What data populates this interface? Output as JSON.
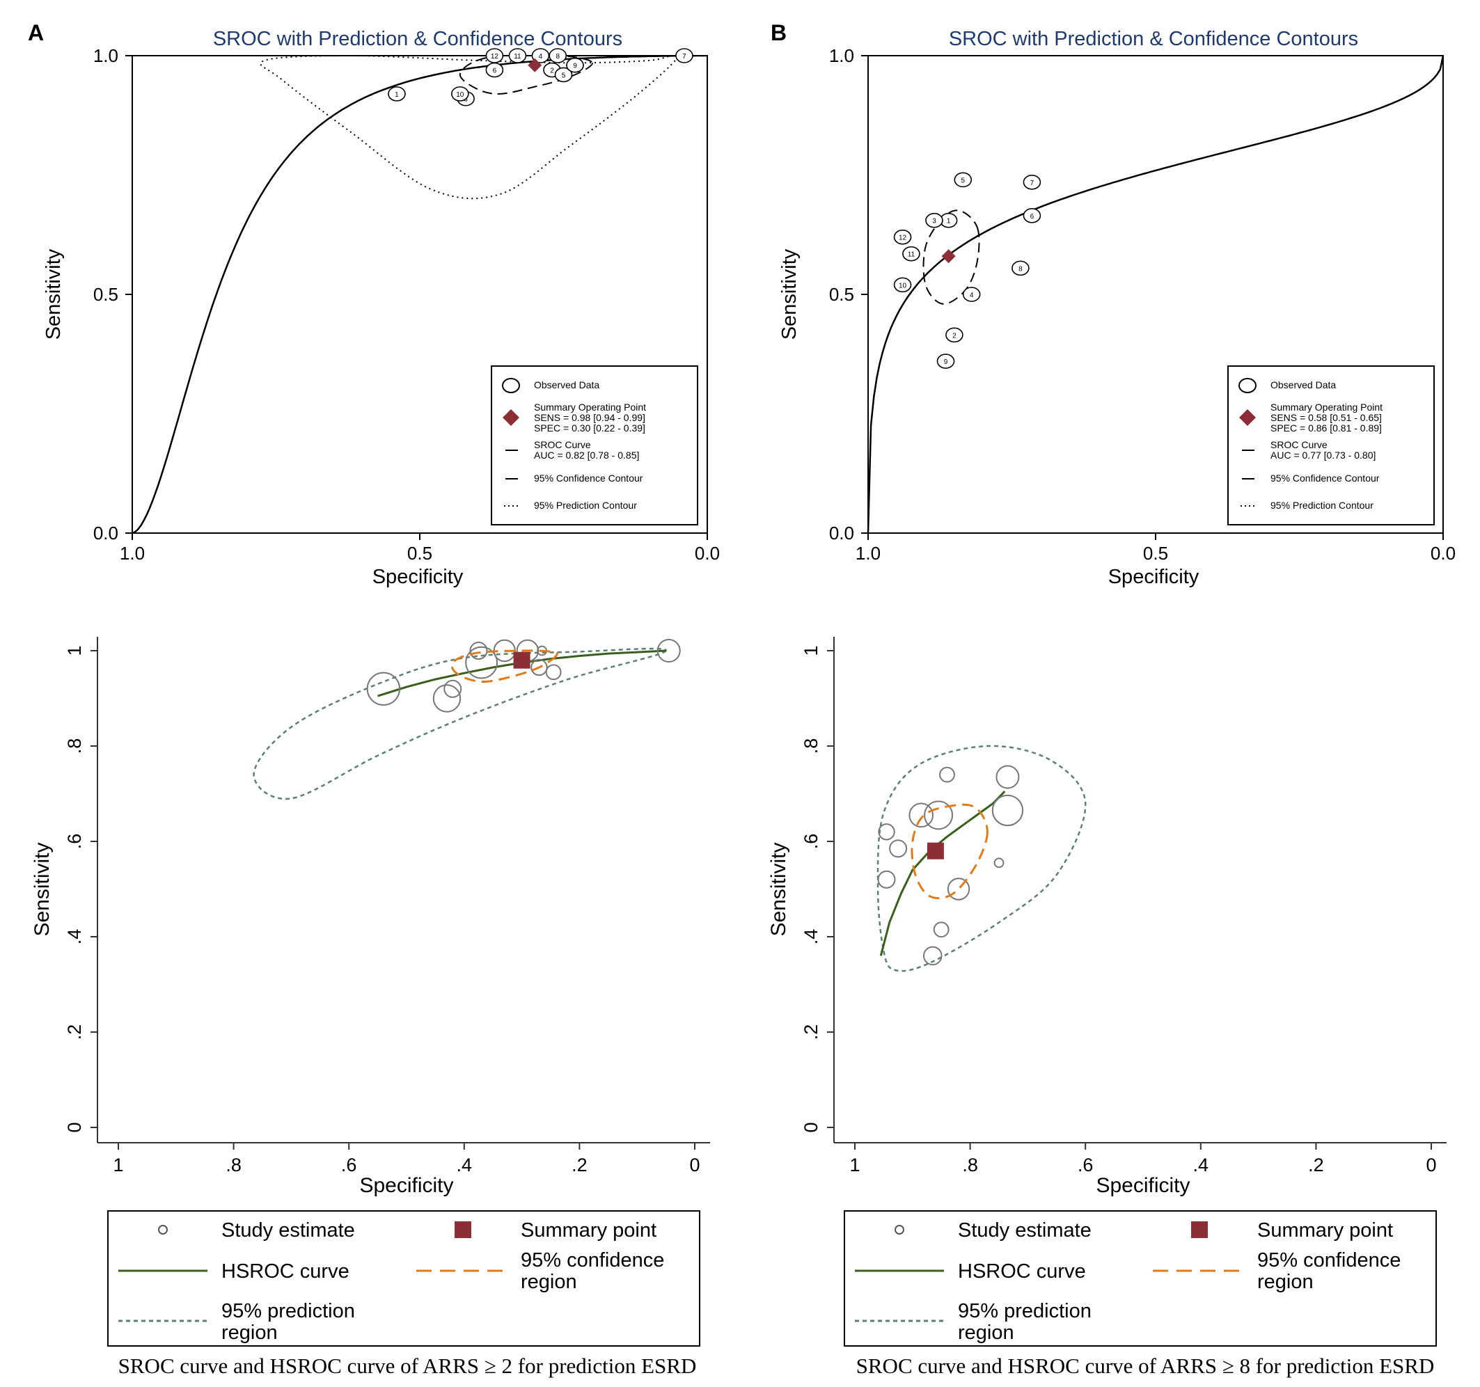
{
  "figure": {
    "panels": [
      {
        "letter": "A",
        "sroc": {
          "title": "SROC with Prediction & Confidence Contours",
          "xlabel": "Specificity",
          "ylabel": "Sensitivity",
          "xticks": [
            "1.0",
            "0.5",
            "0.0"
          ],
          "yticks": [
            "0.0",
            "0.5",
            "1.0"
          ],
          "legend": {
            "observed": "Observed Data",
            "summary": [
              "Summary Operating Point",
              "SENS = 0.98 [0.94 - 0.99]",
              "SPEC = 0.30 [0.22 - 0.39]"
            ],
            "curve": [
              "SROC Curve",
              "AUC = 0.82 [0.78 - 0.85]"
            ],
            "confidence": "95% Confidence Contour",
            "prediction": "95% Prediction Contour"
          }
        },
        "hsroc": {
          "xlabel": "Specificity",
          "ylabel": "Sensitivity",
          "xticks": [
            "1",
            ".8",
            ".6",
            ".4",
            ".2",
            "0"
          ],
          "yticks": [
            "0",
            ".2",
            ".4",
            ".6",
            ".8",
            "1"
          ],
          "legend": {
            "study": "Study estimate",
            "summary": "Summary point",
            "curve": "HSROC curve",
            "confidence": [
              "95% confidence",
              "region"
            ],
            "prediction": [
              "95% prediction",
              "region"
            ]
          }
        },
        "caption": "SROC curve and HSROC curve of ARRS ≥ 2 for prediction ESRD"
      },
      {
        "letter": "B",
        "sroc": {
          "title": "SROC with Prediction & Confidence Contours",
          "xlabel": "Specificity",
          "ylabel": "Sensitivity",
          "xticks": [
            "1.0",
            "0.5",
            "0.0"
          ],
          "yticks": [
            "0.0",
            "0.5",
            "1.0"
          ],
          "legend": {
            "observed": "Observed Data",
            "summary": [
              "Summary Operating Point",
              "SENS = 0.58 [0.51 - 0.65]",
              "SPEC = 0.86 [0.81 - 0.89]"
            ],
            "curve": [
              "SROC Curve",
              "AUC = 0.77 [0.73 - 0.80]"
            ],
            "confidence": "95% Confidence Contour",
            "prediction": "95% Prediction Contour"
          }
        },
        "hsroc": {
          "xlabel": "Specificity",
          "ylabel": "Sensitivity",
          "xticks": [
            "1",
            ".8",
            ".6",
            ".4",
            ".2",
            "0"
          ],
          "yticks": [
            "0",
            ".2",
            ".4",
            ".6",
            ".8",
            "1"
          ],
          "legend": {
            "study": "Study estimate",
            "summary": "Summary point",
            "curve": "HSROC curve",
            "confidence": [
              "95% confidence",
              "region"
            ],
            "prediction": [
              "95% prediction",
              "region"
            ]
          }
        },
        "caption": "SROC curve and HSROC curve of ARRS ≥ 8 for prediction ESRD"
      }
    ]
  },
  "colors": {
    "summary": "#8b2e36",
    "hsroc_curve": "#3a5f1c",
    "confidence_region": "#e07b1a",
    "prediction_region": "#5c7f73",
    "study_circle": "#777777",
    "title": "#1f3a6e",
    "axis": "#000000"
  },
  "chart_data": [
    {
      "type": "scatter",
      "title": "SROC with Prediction & Confidence Contours",
      "panel": "A",
      "xlabel": "Specificity",
      "ylabel": "Sensitivity",
      "xlim": [
        1.0,
        0.0
      ],
      "ylim": [
        0.0,
        1.0
      ],
      "studies": [
        {
          "id": "1",
          "spec": 0.54,
          "sens": 0.92
        },
        {
          "id": "2",
          "spec": 0.27,
          "sens": 0.97
        },
        {
          "id": "3",
          "spec": 0.42,
          "sens": 0.91
        },
        {
          "id": "4",
          "spec": 0.29,
          "sens": 1.0
        },
        {
          "id": "5",
          "spec": 0.25,
          "sens": 0.96
        },
        {
          "id": "6",
          "spec": 0.37,
          "sens": 0.97
        },
        {
          "id": "7",
          "spec": 0.04,
          "sens": 1.0
        },
        {
          "id": "8",
          "spec": 0.26,
          "sens": 1.0
        },
        {
          "id": "9",
          "spec": 0.23,
          "sens": 0.98
        },
        {
          "id": "10",
          "spec": 0.43,
          "sens": 0.92
        },
        {
          "id": "11",
          "spec": 0.33,
          "sens": 1.0
        },
        {
          "id": "12",
          "spec": 0.37,
          "sens": 1.0
        }
      ],
      "summary": {
        "spec": 0.3,
        "sens": 0.98,
        "sens_ci": [
          0.94,
          0.99
        ],
        "spec_ci": [
          0.22,
          0.39
        ]
      },
      "sroc_curve": {
        "auc": 0.82,
        "auc_ci": [
          0.78,
          0.85
        ]
      },
      "prediction_contour": [
        [
          0.23,
          0.985
        ],
        [
          0.1,
          0.99
        ],
        [
          0.05,
          1.0
        ],
        [
          0.12,
          0.92
        ],
        [
          0.24,
          0.81
        ],
        [
          0.36,
          0.71
        ],
        [
          0.48,
          0.72
        ],
        [
          0.62,
          0.84
        ],
        [
          0.74,
          0.95
        ],
        [
          0.77,
          0.99
        ],
        [
          0.62,
          1.0
        ],
        [
          0.4,
          0.99
        ]
      ],
      "confidence_contour": [
        [
          0.2,
          0.985
        ],
        [
          0.24,
          0.955
        ],
        [
          0.3,
          0.935
        ],
        [
          0.36,
          0.92
        ],
        [
          0.4,
          0.93
        ],
        [
          0.43,
          0.96
        ],
        [
          0.4,
          0.99
        ],
        [
          0.33,
          1.005
        ],
        [
          0.25,
          1.0
        ]
      ]
    },
    {
      "type": "scatter",
      "title": "SROC with Prediction & Confidence Contours",
      "panel": "B",
      "xlabel": "Specificity",
      "ylabel": "Sensitivity",
      "xlim": [
        1.0,
        0.0
      ],
      "ylim": [
        0.0,
        1.0
      ],
      "studies": [
        {
          "id": "1",
          "spec": 0.86,
          "sens": 0.655
        },
        {
          "id": "2",
          "spec": 0.85,
          "sens": 0.415
        },
        {
          "id": "3",
          "spec": 0.885,
          "sens": 0.655
        },
        {
          "id": "4",
          "spec": 0.82,
          "sens": 0.5
        },
        {
          "id": "5",
          "spec": 0.835,
          "sens": 0.74
        },
        {
          "id": "6",
          "spec": 0.715,
          "sens": 0.665
        },
        {
          "id": "7",
          "spec": 0.715,
          "sens": 0.735
        },
        {
          "id": "8",
          "spec": 0.735,
          "sens": 0.555
        },
        {
          "id": "9",
          "spec": 0.865,
          "sens": 0.36
        },
        {
          "id": "10",
          "spec": 0.94,
          "sens": 0.52
        },
        {
          "id": "11",
          "spec": 0.925,
          "sens": 0.585
        },
        {
          "id": "12",
          "spec": 0.94,
          "sens": 0.62
        }
      ],
      "summary": {
        "spec": 0.86,
        "sens": 0.58,
        "sens_ci": [
          0.51,
          0.65
        ],
        "spec_ci": [
          0.81,
          0.89
        ]
      },
      "sroc_curve": {
        "auc": 0.77,
        "auc_ci": [
          0.73,
          0.8
        ]
      },
      "confidence_contour": [
        [
          0.81,
          0.64
        ],
        [
          0.81,
          0.57
        ],
        [
          0.83,
          0.51
        ],
        [
          0.87,
          0.48
        ],
        [
          0.9,
          0.52
        ],
        [
          0.9,
          0.6
        ],
        [
          0.87,
          0.66
        ],
        [
          0.84,
          0.675
        ]
      ]
    },
    {
      "type": "scatter",
      "panel": "A",
      "xlabel": "Specificity",
      "ylabel": "Sensitivity",
      "xlim": [
        1.0,
        0.0
      ],
      "ylim": [
        0.0,
        1.0
      ],
      "studies": [
        {
          "spec": 0.54,
          "sens": 0.92,
          "size": 1.45
        },
        {
          "spec": 0.43,
          "sens": 0.9,
          "size": 1.2
        },
        {
          "spec": 0.42,
          "sens": 0.92,
          "size": 0.75
        },
        {
          "spec": 0.37,
          "sens": 0.975,
          "size": 1.4
        },
        {
          "spec": 0.375,
          "sens": 1.0,
          "size": 0.75
        },
        {
          "spec": 0.33,
          "sens": 1.0,
          "size": 0.95
        },
        {
          "spec": 0.29,
          "sens": 1.0,
          "size": 0.95
        },
        {
          "spec": 0.265,
          "sens": 1.0,
          "size": 0.4
        },
        {
          "spec": 0.27,
          "sens": 0.965,
          "size": 0.7
        },
        {
          "spec": 0.245,
          "sens": 0.955,
          "size": 0.65
        },
        {
          "spec": 0.045,
          "sens": 1.0,
          "size": 1.0
        }
      ],
      "summary": {
        "spec": 0.3,
        "sens": 0.98
      },
      "hsroc_curve": [
        [
          0.55,
          0.905
        ],
        [
          0.5,
          0.924
        ],
        [
          0.45,
          0.94
        ],
        [
          0.4,
          0.953
        ],
        [
          0.35,
          0.965
        ],
        [
          0.3,
          0.975
        ],
        [
          0.25,
          0.983
        ],
        [
          0.2,
          0.989
        ],
        [
          0.15,
          0.994
        ],
        [
          0.1,
          0.997
        ],
        [
          0.05,
          1.0
        ]
      ],
      "confidence_region": [
        [
          0.24,
          0.99
        ],
        [
          0.27,
          0.965
        ],
        [
          0.32,
          0.945
        ],
        [
          0.37,
          0.935
        ],
        [
          0.41,
          0.95
        ],
        [
          0.42,
          0.975
        ],
        [
          0.38,
          0.995
        ],
        [
          0.3,
          1.0
        ],
        [
          0.25,
          0.998
        ]
      ],
      "prediction_region": [
        [
          0.05,
          1.0
        ],
        [
          0.22,
          0.94
        ],
        [
          0.4,
          0.86
        ],
        [
          0.55,
          0.78
        ],
        [
          0.7,
          0.69
        ],
        [
          0.765,
          0.74
        ],
        [
          0.7,
          0.84
        ],
        [
          0.55,
          0.93
        ],
        [
          0.4,
          0.985
        ],
        [
          0.2,
          0.998
        ]
      ]
    },
    {
      "type": "scatter",
      "panel": "B",
      "xlabel": "Specificity",
      "ylabel": "Sensitivity",
      "xlim": [
        1.0,
        0.0
      ],
      "ylim": [
        0.0,
        1.0
      ],
      "studies": [
        {
          "spec": 0.84,
          "sens": 0.74,
          "size": 0.65
        },
        {
          "spec": 0.735,
          "sens": 0.735,
          "size": 1.0
        },
        {
          "spec": 0.885,
          "sens": 0.655,
          "size": 1.05
        },
        {
          "spec": 0.855,
          "sens": 0.655,
          "size": 1.25
        },
        {
          "spec": 0.735,
          "sens": 0.665,
          "size": 1.35
        },
        {
          "spec": 0.945,
          "sens": 0.62,
          "size": 0.7
        },
        {
          "spec": 0.925,
          "sens": 0.585,
          "size": 0.75
        },
        {
          "spec": 0.75,
          "sens": 0.555,
          "size": 0.4
        },
        {
          "spec": 0.945,
          "sens": 0.52,
          "size": 0.75
        },
        {
          "spec": 0.82,
          "sens": 0.5,
          "size": 0.95
        },
        {
          "spec": 0.85,
          "sens": 0.415,
          "size": 0.65
        },
        {
          "spec": 0.865,
          "sens": 0.36,
          "size": 0.8
        }
      ],
      "summary": {
        "spec": 0.86,
        "sens": 0.58
      },
      "hsroc_curve": [
        [
          0.955,
          0.36
        ],
        [
          0.94,
          0.43
        ],
        [
          0.92,
          0.49
        ],
        [
          0.9,
          0.54
        ],
        [
          0.87,
          0.58
        ],
        [
          0.84,
          0.61
        ],
        [
          0.8,
          0.645
        ],
        [
          0.76,
          0.68
        ],
        [
          0.74,
          0.705
        ]
      ],
      "confidence_region": [
        [
          0.77,
          0.62
        ],
        [
          0.79,
          0.55
        ],
        [
          0.83,
          0.49
        ],
        [
          0.87,
          0.485
        ],
        [
          0.895,
          0.53
        ],
        [
          0.9,
          0.6
        ],
        [
          0.88,
          0.655
        ],
        [
          0.83,
          0.675
        ],
        [
          0.79,
          0.67
        ]
      ],
      "prediction_region": [
        [
          0.95,
          0.37
        ],
        [
          0.93,
          0.33
        ],
        [
          0.87,
          0.345
        ],
        [
          0.75,
          0.43
        ],
        [
          0.65,
          0.53
        ],
        [
          0.6,
          0.68
        ],
        [
          0.66,
          0.77
        ],
        [
          0.77,
          0.8
        ],
        [
          0.89,
          0.76
        ],
        [
          0.95,
          0.66
        ],
        [
          0.96,
          0.5
        ]
      ]
    }
  ]
}
